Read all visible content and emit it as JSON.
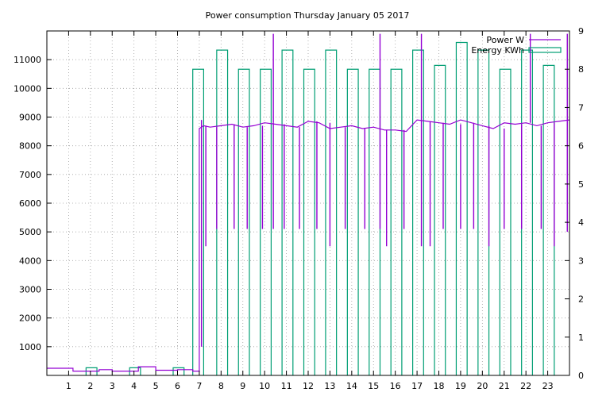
{
  "chart_data": {
    "type": "line",
    "title": "Power consumption Thursday January 05 2017",
    "xlabel": "",
    "ylabel": "",
    "y2label": "",
    "xlim": [
      0,
      24
    ],
    "ylim": [
      0,
      12000
    ],
    "y2lim": [
      0,
      9
    ],
    "x_ticks": [
      1,
      2,
      3,
      4,
      5,
      6,
      7,
      8,
      9,
      10,
      11,
      12,
      13,
      14,
      15,
      16,
      17,
      18,
      19,
      20,
      21,
      22,
      23
    ],
    "y_ticks": [
      1000,
      2000,
      3000,
      4000,
      5000,
      6000,
      7000,
      8000,
      9000,
      10000,
      11000
    ],
    "y2_ticks": [
      0,
      1,
      2,
      3,
      4,
      5,
      6,
      7,
      8,
      9
    ],
    "grid": true,
    "legend_position": "top-right",
    "series": [
      {
        "name": "Power W",
        "axis": "y1",
        "color": "#9400d3",
        "style": "line",
        "x": [
          0,
          1.2,
          1.2,
          2.4,
          2.4,
          3,
          3,
          4.2,
          4.2,
          5,
          5,
          6,
          6,
          6.7,
          6.7,
          7,
          7,
          7.2,
          7.5,
          8,
          8.5,
          9,
          9.5,
          10,
          10.5,
          11,
          11.5,
          12,
          12.5,
          13,
          13.5,
          14,
          14.5,
          15,
          15.5,
          16,
          16.5,
          17,
          17.5,
          18,
          18.5,
          19,
          19.5,
          20,
          20.5,
          21,
          21.5,
          22,
          22.5,
          23,
          23.5,
          24
        ],
        "values": [
          250,
          250,
          150,
          150,
          200,
          200,
          150,
          150,
          300,
          300,
          180,
          180,
          200,
          200,
          150,
          150,
          8600,
          8700,
          8650,
          8700,
          8750,
          8650,
          8700,
          8800,
          8750,
          8700,
          8650,
          8850,
          8800,
          8600,
          8650,
          8700,
          8600,
          8650,
          8550,
          8550,
          8500,
          8900,
          8850,
          8800,
          8750,
          8900,
          8800,
          8700,
          8600,
          8800,
          8750,
          8800,
          8700,
          8800,
          8850,
          8900
        ],
        "spikes": [
          {
            "x": 7.1,
            "values": [
              1000,
              8900
            ]
          },
          {
            "x": 7.3,
            "values": [
              4500
            ]
          },
          {
            "x": 7.8,
            "values": [
              5100
            ]
          },
          {
            "x": 8.6,
            "values": [
              5100
            ]
          },
          {
            "x": 9.2,
            "values": [
              5100
            ]
          },
          {
            "x": 9.9,
            "values": [
              5100
            ]
          },
          {
            "x": 10.4,
            "values": [
              5100,
              11900
            ]
          },
          {
            "x": 10.9,
            "values": [
              5100
            ]
          },
          {
            "x": 11.6,
            "values": [
              5100
            ]
          },
          {
            "x": 12.4,
            "values": [
              5100
            ]
          },
          {
            "x": 13.0,
            "values": [
              4500
            ]
          },
          {
            "x": 13.7,
            "values": [
              5100
            ]
          },
          {
            "x": 14.6,
            "values": [
              5100
            ]
          },
          {
            "x": 15.3,
            "values": [
              5100,
              11900
            ]
          },
          {
            "x": 15.6,
            "values": [
              4500
            ]
          },
          {
            "x": 16.4,
            "values": [
              5100
            ]
          },
          {
            "x": 17.2,
            "values": [
              4500,
              11900
            ]
          },
          {
            "x": 17.6,
            "values": [
              4500
            ]
          },
          {
            "x": 18.2,
            "values": [
              5100
            ]
          },
          {
            "x": 19.0,
            "values": [
              5100
            ]
          },
          {
            "x": 19.6,
            "values": [
              5100
            ]
          },
          {
            "x": 20.3,
            "values": [
              4500
            ]
          },
          {
            "x": 21.0,
            "values": [
              5100
            ]
          },
          {
            "x": 21.8,
            "values": [
              5100
            ]
          },
          {
            "x": 22.2,
            "values": [
              11900
            ]
          },
          {
            "x": 22.7,
            "values": [
              5100
            ]
          },
          {
            "x": 23.3,
            "values": [
              4500
            ]
          },
          {
            "x": 23.9,
            "values": [
              5000,
              11900
            ]
          }
        ]
      },
      {
        "name": "Energy KWh",
        "axis": "y2",
        "color": "#009e73",
        "style": "steps",
        "bars": [
          {
            "x0": 1.8,
            "x1": 2.3,
            "value": 0.2
          },
          {
            "x0": 3.8,
            "x1": 4.3,
            "value": 0.2
          },
          {
            "x0": 5.8,
            "x1": 6.3,
            "value": 0.2
          },
          {
            "x0": 6.7,
            "x1": 7.2,
            "value": 8.0
          },
          {
            "x0": 7.8,
            "x1": 8.3,
            "value": 8.5
          },
          {
            "x0": 8.8,
            "x1": 9.3,
            "value": 8.0
          },
          {
            "x0": 9.8,
            "x1": 10.3,
            "value": 8.0
          },
          {
            "x0": 10.8,
            "x1": 11.3,
            "value": 8.5
          },
          {
            "x0": 11.8,
            "x1": 12.3,
            "value": 8.0
          },
          {
            "x0": 12.8,
            "x1": 13.3,
            "value": 8.5
          },
          {
            "x0": 13.8,
            "x1": 14.3,
            "value": 8.0
          },
          {
            "x0": 14.8,
            "x1": 15.3,
            "value": 8.0
          },
          {
            "x0": 15.8,
            "x1": 16.3,
            "value": 8.0
          },
          {
            "x0": 16.8,
            "x1": 17.3,
            "value": 8.5
          },
          {
            "x0": 17.8,
            "x1": 18.3,
            "value": 8.1
          },
          {
            "x0": 18.8,
            "x1": 19.3,
            "value": 8.7
          },
          {
            "x0": 19.8,
            "x1": 20.3,
            "value": 8.5
          },
          {
            "x0": 20.8,
            "x1": 21.3,
            "value": 8.0
          },
          {
            "x0": 21.8,
            "x1": 22.3,
            "value": 8.5
          },
          {
            "x0": 22.8,
            "x1": 23.3,
            "value": 8.1
          }
        ]
      }
    ]
  }
}
